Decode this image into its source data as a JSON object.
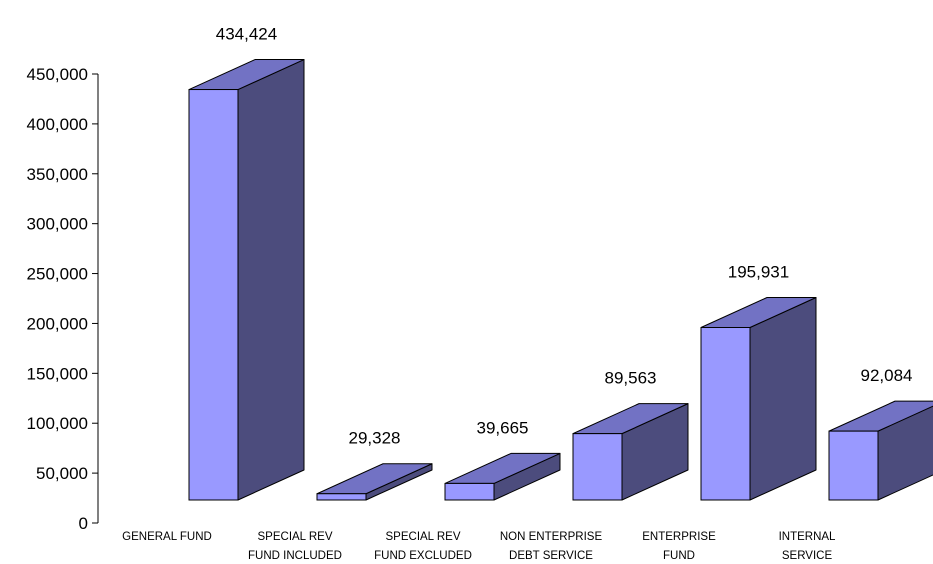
{
  "chart_data": {
    "type": "bar",
    "style": "3d-column",
    "categories": [
      [
        "GENERAL FUND"
      ],
      [
        "SPECIAL REV",
        "FUND INCLUDED"
      ],
      [
        "SPECIAL REV",
        "FUND EXCLUDED"
      ],
      [
        "NON ENTERPRISE",
        "DEBT SERVICE"
      ],
      [
        "ENTERPRISE",
        "FUND"
      ],
      [
        "INTERNAL",
        "SERVICE"
      ]
    ],
    "values": [
      434424,
      29328,
      39665,
      89563,
      195931,
      92084
    ],
    "data_labels": [
      "434,424",
      "29,328",
      "39,665",
      "89,563",
      "195,931",
      "92,084"
    ],
    "ylim": [
      0,
      450000
    ],
    "yticks": [
      0,
      50000,
      100000,
      150000,
      200000,
      250000,
      300000,
      350000,
      400000,
      450000
    ],
    "ytick_labels": [
      "0",
      "50,000",
      "100,000",
      "150,000",
      "200,000",
      "250,000",
      "300,000",
      "350,000",
      "400,000",
      "450,000"
    ],
    "grid": false,
    "legend": "none",
    "colors": {
      "front": "#9999ff",
      "top": "#7272c4",
      "side": "#4c4c7d",
      "outline": "#000000"
    }
  }
}
